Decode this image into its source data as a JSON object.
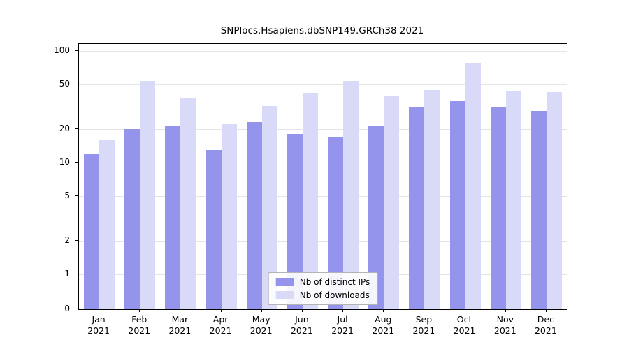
{
  "chart_data": {
    "type": "bar",
    "title": "SNPlocs.Hsapiens.dbSNP149.GRCh38 2021",
    "categories": [
      "Jan",
      "Feb",
      "Mar",
      "Apr",
      "May",
      "Jun",
      "Jul",
      "Aug",
      "Sep",
      "Oct",
      "Nov",
      "Dec"
    ],
    "year_label": "2021",
    "series": [
      {
        "name": "Nb of distinct IPs",
        "color": "#9494ec",
        "values": [
          12,
          20,
          21,
          13,
          23,
          18,
          17,
          21,
          31,
          36,
          31,
          29
        ]
      },
      {
        "name": "Nb of downloads",
        "color": "#d9d9f8",
        "values": [
          16,
          54,
          38,
          22,
          32,
          42,
          54,
          40,
          45,
          78,
          44,
          43
        ]
      }
    ],
    "yticks": [
      0,
      1,
      2,
      5,
      10,
      20,
      50,
      100
    ],
    "scale": "log",
    "ylim": [
      0,
      110
    ],
    "grid": true,
    "legend_position": "lower center",
    "gridline_color": "#e4e4e4",
    "axis_color": "#000000"
  }
}
